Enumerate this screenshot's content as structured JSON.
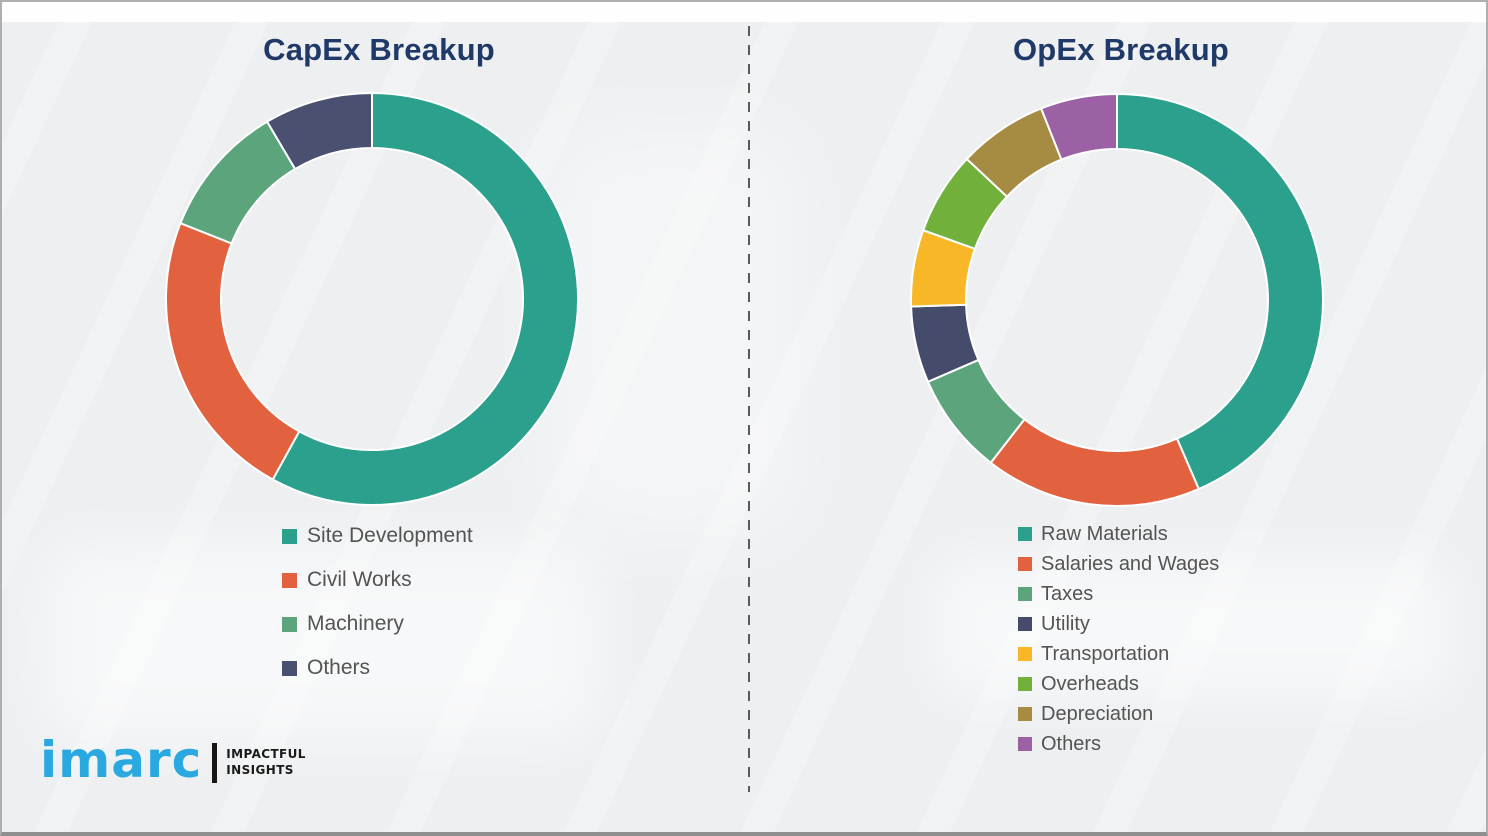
{
  "page": {
    "background_color": "#edeff1",
    "border_color": "#aeaeae",
    "divider_color": "#5a5a5a"
  },
  "chart_data": [
    {
      "type": "pie",
      "subtype": "donut",
      "title": "CapEx Breakup",
      "title_color": "#1f3a68",
      "categories": [
        "Site Development",
        "Civil Works",
        "Machinery",
        "Others"
      ],
      "values": [
        58,
        23,
        10.5,
        8.5
      ],
      "values_note": "percent of ring, estimated from arc angles; no numeric labels shown",
      "colors": [
        "#2aa08d",
        "#e2613f",
        "#5ca57c",
        "#4a5070"
      ],
      "start_angle_deg": 0,
      "direction": "clockwise",
      "legend_position": "below-left",
      "data_labels_shown": false
    },
    {
      "type": "pie",
      "subtype": "donut",
      "title": "OpEx Breakup",
      "title_color": "#1f3a68",
      "categories": [
        "Raw Materials",
        "Salaries and Wages",
        "Taxes",
        "Utility",
        "Transportation",
        "Overheads",
        "Depreciation",
        "Others"
      ],
      "values": [
        43.5,
        17,
        8,
        6,
        6,
        6.5,
        7,
        6
      ],
      "values_note": "percent of ring, estimated from arc angles; no numeric labels shown",
      "colors": [
        "#2aa08d",
        "#e2613f",
        "#5ca57c",
        "#454c6b",
        "#f8b727",
        "#72b03c",
        "#a68c42",
        "#9c61a4"
      ],
      "start_angle_deg": 0,
      "direction": "clockwise",
      "legend_position": "below-left",
      "data_labels_shown": false
    }
  ],
  "logo": {
    "wordmark": "imarc",
    "tagline_line1": "IMPACTFUL",
    "tagline_line2": "INSIGHTS",
    "brand_color": "#29a9e0"
  }
}
